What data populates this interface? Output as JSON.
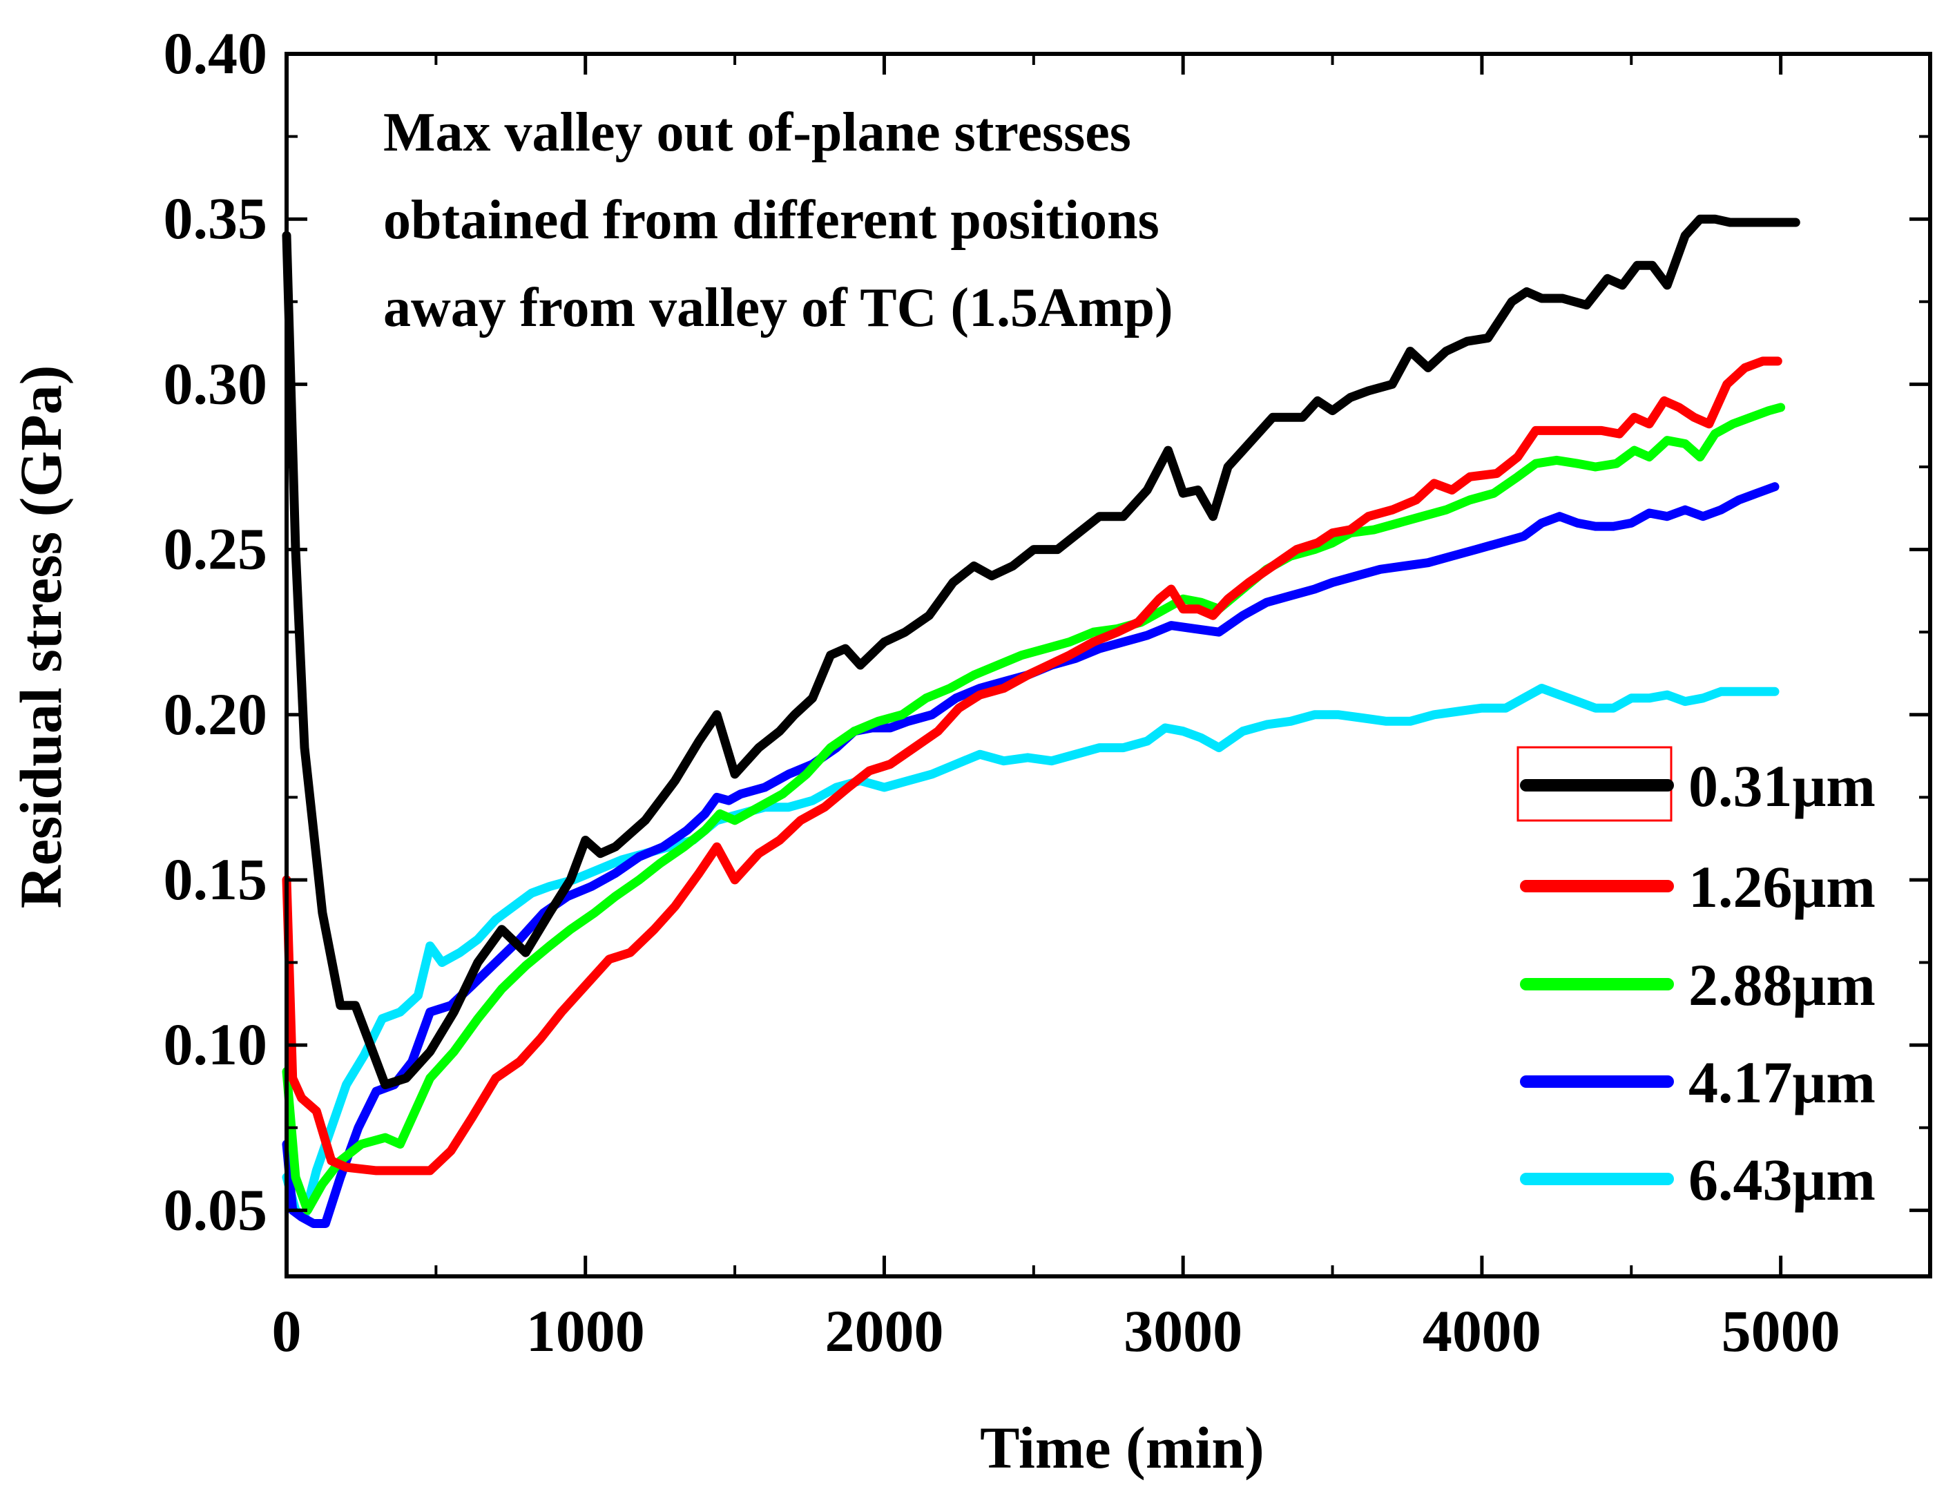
{
  "chart_data": {
    "type": "line",
    "xlabel": "Time (min)",
    "ylabel": "Residual stress (GPa)",
    "xlim": [
      0,
      5500
    ],
    "ylim": [
      0.03,
      0.4
    ],
    "x_ticks": [
      0,
      1000,
      2000,
      3000,
      4000,
      5000
    ],
    "x_tick_labels": [
      "0",
      "1000",
      "2000",
      "3000",
      "4000",
      "5000"
    ],
    "y_ticks": [
      0.05,
      0.1,
      0.15,
      0.2,
      0.25,
      0.3,
      0.35,
      0.4
    ],
    "y_tick_labels": [
      "0.05",
      "0.10",
      "0.15",
      "0.20",
      "0.25",
      "0.30",
      "0.35",
      "0.40"
    ],
    "annotation": [
      "Max valley out of-plane stresses",
      "obtained from different positions",
      "away from valley of TC (1.5Amp)"
    ],
    "legend_position": "right",
    "series": [
      {
        "name": "0.31μm",
        "color": "#000000",
        "x": [
          0,
          30,
          60,
          120,
          180,
          230,
          280,
          330,
          400,
          480,
          560,
          640,
          720,
          800,
          880,
          950,
          1000,
          1050,
          1100,
          1200,
          1300,
          1380,
          1440,
          1500,
          1580,
          1650,
          1700,
          1760,
          1820,
          1870,
          1920,
          2000,
          2070,
          2150,
          2230,
          2300,
          2360,
          2430,
          2500,
          2580,
          2650,
          2720,
          2800,
          2880,
          2950,
          3000,
          3050,
          3100,
          3150,
          3200,
          3300,
          3400,
          3450,
          3500,
          3560,
          3620,
          3700,
          3760,
          3820,
          3880,
          3950,
          4020,
          4100,
          4150,
          4200,
          4270,
          4350,
          4420,
          4470,
          4520,
          4570,
          4620,
          4680,
          4730,
          4780,
          4830,
          4880,
          4940,
          5000,
          5050
        ],
        "y": [
          0.345,
          0.25,
          0.19,
          0.14,
          0.112,
          0.112,
          0.1,
          0.088,
          0.09,
          0.098,
          0.11,
          0.125,
          0.135,
          0.128,
          0.14,
          0.15,
          0.162,
          0.158,
          0.16,
          0.168,
          0.18,
          0.192,
          0.2,
          0.182,
          0.19,
          0.195,
          0.2,
          0.205,
          0.218,
          0.22,
          0.215,
          0.222,
          0.225,
          0.23,
          0.24,
          0.245,
          0.242,
          0.245,
          0.25,
          0.25,
          0.255,
          0.26,
          0.26,
          0.268,
          0.28,
          0.267,
          0.268,
          0.26,
          0.275,
          0.28,
          0.29,
          0.29,
          0.295,
          0.292,
          0.296,
          0.298,
          0.3,
          0.31,
          0.305,
          0.31,
          0.313,
          0.314,
          0.325,
          0.328,
          0.326,
          0.326,
          0.324,
          0.332,
          0.33,
          0.336,
          0.336,
          0.33,
          0.345,
          0.35,
          0.35,
          0.349,
          0.349,
          0.349,
          0.349,
          0.349
        ]
      },
      {
        "name": "1.26μm",
        "color": "#ff0000",
        "x": [
          0,
          20,
          50,
          100,
          150,
          200,
          300,
          400,
          480,
          550,
          620,
          700,
          780,
          850,
          920,
          1000,
          1080,
          1150,
          1230,
          1300,
          1380,
          1440,
          1500,
          1580,
          1650,
          1720,
          1800,
          1880,
          1950,
          2020,
          2100,
          2180,
          2250,
          2320,
          2400,
          2480,
          2550,
          2620,
          2700,
          2780,
          2850,
          2920,
          2960,
          3000,
          3050,
          3100,
          3150,
          3220,
          3300,
          3380,
          3450,
          3500,
          3560,
          3620,
          3700,
          3780,
          3840,
          3900,
          3960,
          4050,
          4120,
          4180,
          4250,
          4320,
          4400,
          4460,
          4510,
          4560,
          4610,
          4660,
          4710,
          4760,
          4820,
          4880,
          4940,
          4990
        ],
        "y": [
          0.15,
          0.09,
          0.084,
          0.08,
          0.065,
          0.063,
          0.062,
          0.062,
          0.062,
          0.068,
          0.078,
          0.09,
          0.095,
          0.102,
          0.11,
          0.118,
          0.126,
          0.128,
          0.135,
          0.142,
          0.152,
          0.16,
          0.15,
          0.158,
          0.162,
          0.168,
          0.172,
          0.178,
          0.183,
          0.185,
          0.19,
          0.195,
          0.202,
          0.206,
          0.208,
          0.212,
          0.215,
          0.218,
          0.222,
          0.225,
          0.228,
          0.235,
          0.238,
          0.232,
          0.232,
          0.23,
          0.235,
          0.24,
          0.245,
          0.25,
          0.252,
          0.255,
          0.256,
          0.26,
          0.262,
          0.265,
          0.27,
          0.268,
          0.272,
          0.273,
          0.278,
          0.286,
          0.286,
          0.286,
          0.286,
          0.285,
          0.29,
          0.288,
          0.295,
          0.293,
          0.29,
          0.288,
          0.3,
          0.305,
          0.307,
          0.307
        ]
      },
      {
        "name": "2.88μm",
        "color": "#00ff00",
        "x": [
          0,
          30,
          70,
          120,
          180,
          250,
          330,
          380,
          420,
          480,
          560,
          640,
          720,
          800,
          880,
          950,
          1030,
          1100,
          1180,
          1250,
          1330,
          1400,
          1450,
          1500,
          1580,
          1660,
          1740,
          1820,
          1900,
          1980,
          2060,
          2140,
          2220,
          2300,
          2380,
          2460,
          2540,
          2620,
          2700,
          2780,
          2860,
          2940,
          3000,
          3060,
          3120,
          3200,
          3280,
          3360,
          3440,
          3500,
          3560,
          3640,
          3720,
          3800,
          3880,
          3960,
          4040,
          4120,
          4180,
          4250,
          4320,
          4380,
          4450,
          4510,
          4560,
          4620,
          4680,
          4730,
          4780,
          4840,
          4900,
          4960,
          5000
        ],
        "y": [
          0.092,
          0.06,
          0.05,
          0.058,
          0.065,
          0.07,
          0.072,
          0.07,
          0.078,
          0.09,
          0.098,
          0.108,
          0.117,
          0.124,
          0.13,
          0.135,
          0.14,
          0.145,
          0.15,
          0.155,
          0.16,
          0.165,
          0.17,
          0.168,
          0.172,
          0.176,
          0.182,
          0.19,
          0.195,
          0.198,
          0.2,
          0.205,
          0.208,
          0.212,
          0.215,
          0.218,
          0.22,
          0.222,
          0.225,
          0.226,
          0.228,
          0.232,
          0.235,
          0.234,
          0.232,
          0.238,
          0.244,
          0.248,
          0.25,
          0.252,
          0.255,
          0.256,
          0.258,
          0.26,
          0.262,
          0.265,
          0.267,
          0.272,
          0.276,
          0.277,
          0.276,
          0.275,
          0.276,
          0.28,
          0.278,
          0.283,
          0.282,
          0.278,
          0.285,
          0.288,
          0.29,
          0.292,
          0.293
        ]
      },
      {
        "name": "4.17μm",
        "color": "#0000ff",
        "x": [
          0,
          20,
          50,
          90,
          130,
          180,
          240,
          300,
          360,
          420,
          480,
          550,
          620,
          700,
          780,
          860,
          940,
          1020,
          1100,
          1180,
          1260,
          1340,
          1400,
          1440,
          1480,
          1520,
          1600,
          1680,
          1760,
          1840,
          1900,
          1960,
          2020,
          2080,
          2160,
          2240,
          2320,
          2400,
          2480,
          2560,
          2640,
          2720,
          2800,
          2880,
          2960,
          3040,
          3120,
          3200,
          3280,
          3360,
          3440,
          3500,
          3580,
          3660,
          3740,
          3820,
          3900,
          3980,
          4060,
          4140,
          4200,
          4260,
          4320,
          4380,
          4440,
          4500,
          4560,
          4620,
          4680,
          4740,
          4800,
          4860,
          4920,
          4980
        ],
        "y": [
          0.07,
          0.05,
          0.048,
          0.046,
          0.046,
          0.06,
          0.075,
          0.086,
          0.088,
          0.095,
          0.11,
          0.112,
          0.118,
          0.125,
          0.132,
          0.14,
          0.145,
          0.148,
          0.152,
          0.157,
          0.16,
          0.165,
          0.17,
          0.175,
          0.174,
          0.176,
          0.178,
          0.182,
          0.185,
          0.19,
          0.195,
          0.196,
          0.196,
          0.198,
          0.2,
          0.205,
          0.208,
          0.21,
          0.212,
          0.215,
          0.217,
          0.22,
          0.222,
          0.224,
          0.227,
          0.226,
          0.225,
          0.23,
          0.234,
          0.236,
          0.238,
          0.24,
          0.242,
          0.244,
          0.245,
          0.246,
          0.248,
          0.25,
          0.252,
          0.254,
          0.258,
          0.26,
          0.258,
          0.257,
          0.257,
          0.258,
          0.261,
          0.26,
          0.262,
          0.26,
          0.262,
          0.265,
          0.267,
          0.269
        ]
      },
      {
        "name": "6.43μm",
        "color": "#00e5ff",
        "x": [
          0,
          30,
          60,
          100,
          150,
          200,
          260,
          320,
          380,
          440,
          480,
          520,
          580,
          640,
          700,
          760,
          820,
          880,
          960,
          1040,
          1120,
          1200,
          1280,
          1360,
          1440,
          1520,
          1600,
          1680,
          1760,
          1840,
          1920,
          2000,
          2080,
          2160,
          2240,
          2320,
          2400,
          2480,
          2560,
          2640,
          2720,
          2800,
          2880,
          2940,
          3000,
          3060,
          3120,
          3200,
          3280,
          3360,
          3440,
          3520,
          3600,
          3680,
          3760,
          3840,
          3920,
          4000,
          4080,
          4140,
          4200,
          4260,
          4320,
          4380,
          4440,
          4500,
          4560,
          4620,
          4680,
          4740,
          4800,
          4860,
          4920,
          4980
        ],
        "y": [
          0.06,
          0.05,
          0.048,
          0.062,
          0.075,
          0.088,
          0.097,
          0.108,
          0.11,
          0.115,
          0.13,
          0.125,
          0.128,
          0.132,
          0.138,
          0.142,
          0.146,
          0.148,
          0.15,
          0.153,
          0.156,
          0.158,
          0.16,
          0.162,
          0.168,
          0.17,
          0.172,
          0.172,
          0.174,
          0.178,
          0.18,
          0.178,
          0.18,
          0.182,
          0.185,
          0.188,
          0.186,
          0.187,
          0.186,
          0.188,
          0.19,
          0.19,
          0.192,
          0.196,
          0.195,
          0.193,
          0.19,
          0.195,
          0.197,
          0.198,
          0.2,
          0.2,
          0.199,
          0.198,
          0.198,
          0.2,
          0.201,
          0.202,
          0.202,
          0.205,
          0.208,
          0.206,
          0.204,
          0.202,
          0.202,
          0.205,
          0.205,
          0.206,
          0.204,
          0.205,
          0.207,
          0.207,
          0.207,
          0.207
        ]
      }
    ]
  }
}
